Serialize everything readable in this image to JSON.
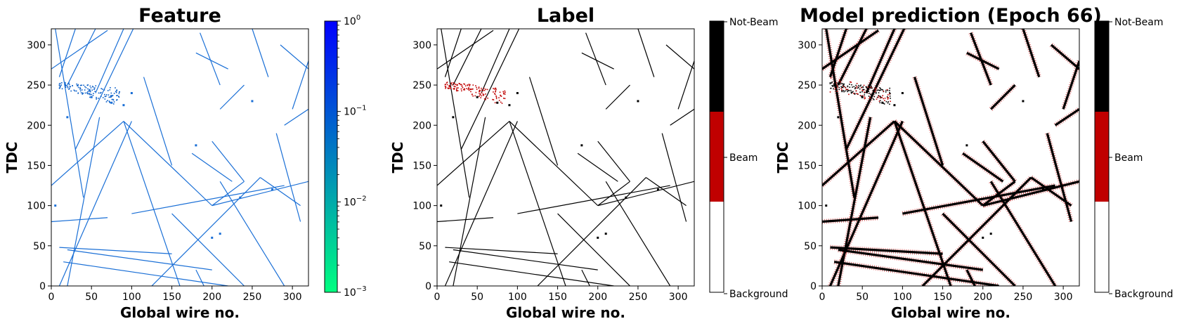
{
  "chart_data": [
    {
      "type": "heatmap",
      "title": "Feature",
      "xlabel": "Global wire no.",
      "ylabel": "TDC",
      "xlim": [
        0,
        320
      ],
      "ylim": [
        0,
        320
      ],
      "xticks": [
        "0",
        "50",
        "100",
        "150",
        "200",
        "250",
        "300"
      ],
      "yticks": [
        "0",
        "50",
        "100",
        "150",
        "200",
        "250",
        "300"
      ],
      "grid": false,
      "colorbar": {
        "scale": "log",
        "range": [
          0.001,
          1
        ],
        "ticks": [
          {
            "base": "10",
            "exp": "0"
          },
          {
            "base": "10",
            "exp": "−1"
          },
          {
            "base": "10",
            "exp": "−2"
          },
          {
            "base": "10",
            "exp": "−3"
          }
        ],
        "colors": [
          "#00ff80",
          "#0080bf",
          "#0000ff"
        ]
      },
      "tracks": [
        {
          "x1": 5,
          "y1": 320,
          "x2": 40,
          "y2": 110
        },
        {
          "x1": 30,
          "y1": 320,
          "x2": 10,
          "y2": 260
        },
        {
          "x1": 55,
          "y1": 320,
          "x2": 20,
          "y2": 250
        },
        {
          "x1": 90,
          "y1": 320,
          "x2": 55,
          "y2": 240
        },
        {
          "x1": 102,
          "y1": 320,
          "x2": 30,
          "y2": 170
        },
        {
          "x1": 0,
          "y1": 270,
          "x2": 70,
          "y2": 318
        },
        {
          "x1": 185,
          "y1": 315,
          "x2": 210,
          "y2": 250
        },
        {
          "x1": 180,
          "y1": 290,
          "x2": 220,
          "y2": 270
        },
        {
          "x1": 210,
          "y1": 220,
          "x2": 240,
          "y2": 250
        },
        {
          "x1": 115,
          "y1": 260,
          "x2": 150,
          "y2": 150
        },
        {
          "x1": 60,
          "y1": 210,
          "x2": 20,
          "y2": 0
        },
        {
          "x1": 0,
          "y1": 125,
          "x2": 90,
          "y2": 205
        },
        {
          "x1": 90,
          "y1": 205,
          "x2": 160,
          "y2": 0
        },
        {
          "x1": 90,
          "y1": 205,
          "x2": 200,
          "y2": 100
        },
        {
          "x1": 200,
          "y1": 100,
          "x2": 240,
          "y2": 130
        },
        {
          "x1": 200,
          "y1": 180,
          "x2": 240,
          "y2": 130
        },
        {
          "x1": 10,
          "y1": 0,
          "x2": 100,
          "y2": 205
        },
        {
          "x1": 150,
          "y1": 90,
          "x2": 240,
          "y2": 0
        },
        {
          "x1": 125,
          "y1": 0,
          "x2": 260,
          "y2": 135
        },
        {
          "x1": 0,
          "y1": 80,
          "x2": 70,
          "y2": 85
        },
        {
          "x1": 100,
          "y1": 90,
          "x2": 290,
          "y2": 125
        },
        {
          "x1": 200,
          "y1": 100,
          "x2": 320,
          "y2": 130
        },
        {
          "x1": 260,
          "y1": 135,
          "x2": 310,
          "y2": 100
        },
        {
          "x1": 285,
          "y1": 300,
          "x2": 320,
          "y2": 270
        },
        {
          "x1": 290,
          "y1": 200,
          "x2": 320,
          "y2": 220
        },
        {
          "x1": 20,
          "y1": 45,
          "x2": 200,
          "y2": 20
        },
        {
          "x1": 15,
          "y1": 30,
          "x2": 220,
          "y2": 0
        },
        {
          "x1": 10,
          "y1": 48,
          "x2": 150,
          "y2": 40
        },
        {
          "x1": 180,
          "y1": 20,
          "x2": 190,
          "y2": 0
        },
        {
          "x1": 250,
          "y1": 320,
          "x2": 270,
          "y2": 260
        },
        {
          "x1": 320,
          "y1": 280,
          "x2": 300,
          "y2": 220
        },
        {
          "x1": 280,
          "y1": 190,
          "x2": 310,
          "y2": 80
        },
        {
          "x1": 210,
          "y1": 130,
          "x2": 290,
          "y2": 0
        },
        {
          "x1": 175,
          "y1": 165,
          "x2": 225,
          "y2": 130
        }
      ],
      "beam_cluster": {
        "x": [
          10,
          85
        ],
        "y": [
          230,
          255
        ]
      },
      "dots": [
        [
          50,
          235
        ],
        [
          75,
          228
        ],
        [
          20,
          210
        ],
        [
          100,
          240
        ],
        [
          90,
          225
        ],
        [
          250,
          230
        ],
        [
          200,
          60
        ],
        [
          210,
          65
        ],
        [
          235,
          110
        ],
        [
          275,
          120
        ],
        [
          180,
          175
        ],
        [
          5,
          100
        ]
      ]
    },
    {
      "type": "heatmap",
      "title": "Label",
      "xlabel": "Global wire no.",
      "ylabel": "TDC",
      "xlim": [
        0,
        320
      ],
      "ylim": [
        0,
        320
      ],
      "xticks": [
        "0",
        "50",
        "100",
        "150",
        "200",
        "250",
        "300"
      ],
      "yticks": [
        "0",
        "50",
        "100",
        "150",
        "200",
        "250",
        "300"
      ],
      "grid": false,
      "colorbar": {
        "scale": "categorical",
        "labels": [
          "Not-Beam",
          "Beam",
          "Background"
        ],
        "colors": [
          "#000000",
          "#c00000",
          "#ffffff"
        ]
      },
      "classes": {
        "track": "Not-Beam",
        "cluster": "Beam",
        "empty": "Background"
      }
    },
    {
      "type": "heatmap",
      "title": "Model prediction (Epoch 66)",
      "xlabel": "Global wire no.",
      "ylabel": "TDC",
      "xlim": [
        0,
        320
      ],
      "ylim": [
        0,
        320
      ],
      "xticks": [
        "0",
        "50",
        "100",
        "150",
        "200",
        "250",
        "300"
      ],
      "yticks": [
        "0",
        "50",
        "100",
        "150",
        "200",
        "250",
        "300"
      ],
      "grid": false,
      "colorbar": {
        "scale": "categorical",
        "labels": [
          "Not-Beam",
          "Beam",
          "Background"
        ],
        "colors": [
          "#000000",
          "#c00000",
          "#ffffff"
        ]
      },
      "classes": {
        "track": "Not-Beam",
        "halo": "Beam",
        "empty": "Background"
      }
    }
  ]
}
